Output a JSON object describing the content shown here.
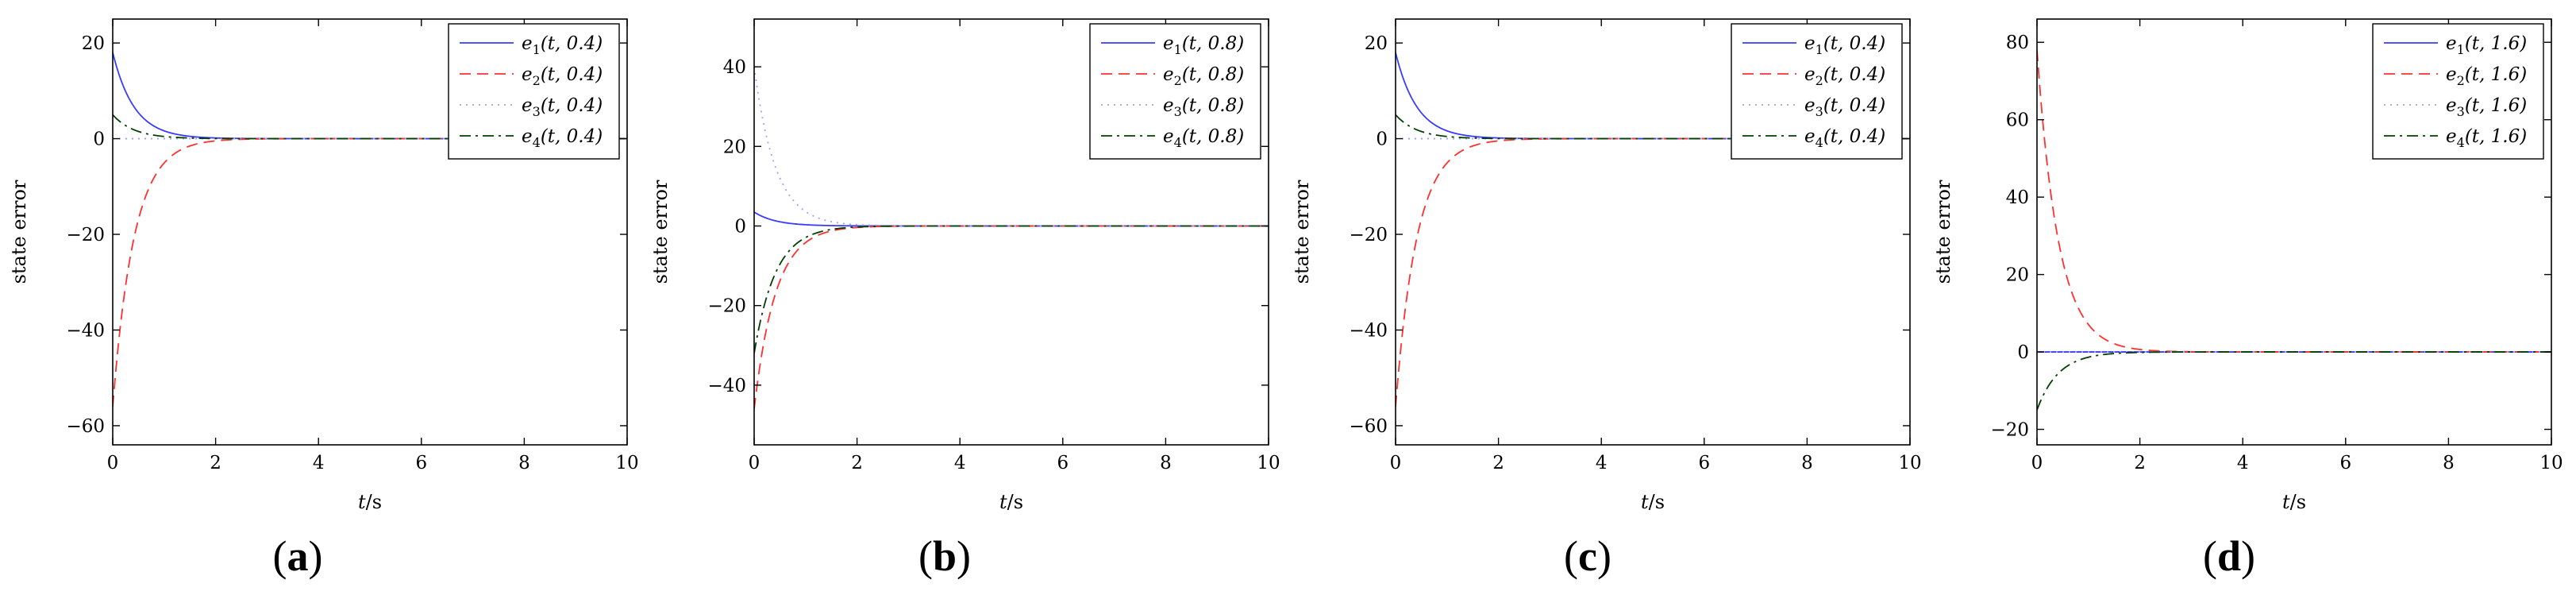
{
  "chart_data": [
    {
      "type": "line",
      "panel_label": "(a)",
      "xlabel": "t/s",
      "ylabel": "state error",
      "xlim": [
        0,
        10
      ],
      "ylim": [
        -64,
        25
      ],
      "xticks": [
        0,
        2,
        4,
        6,
        8,
        10
      ],
      "yticks": [
        -60,
        -40,
        -20,
        0,
        20
      ],
      "legend_position": "top-right",
      "series": [
        {
          "name": "e1(t, 0.4)",
          "legend_main": "e",
          "legend_sub": "1",
          "legend_args": "(t, 0.4)",
          "initial": 18,
          "rate": 2.4,
          "color": "#3b3bff",
          "style": "solid"
        },
        {
          "name": "e2(t, 0.4)",
          "legend_main": "e",
          "legend_sub": "2",
          "legend_args": "(t, 0.4)",
          "initial": -56,
          "rate": 2.4,
          "color": "#ff3030",
          "style": "dashed"
        },
        {
          "name": "e3(t, 0.4)",
          "legend_main": "e",
          "legend_sub": "3",
          "legend_args": "(t, 0.4)",
          "initial": 0,
          "rate": 2.4,
          "color": "#a0a0ff",
          "style": "dotted"
        },
        {
          "name": "e4(t, 0.4)",
          "legend_main": "e",
          "legend_sub": "4",
          "legend_args": "(t, 0.4)",
          "initial": 5,
          "rate": 2.4,
          "color": "#004000",
          "style": "dashdot"
        }
      ]
    },
    {
      "type": "line",
      "panel_label": "(b)",
      "xlabel": "t/s",
      "ylabel": "state error",
      "xlim": [
        0,
        10
      ],
      "ylim": [
        -55,
        52
      ],
      "xticks": [
        0,
        2,
        4,
        6,
        8,
        10
      ],
      "yticks": [
        -40,
        -20,
        0,
        20,
        40
      ],
      "legend_position": "top-right",
      "series": [
        {
          "name": "e1(t, 0.8)",
          "legend_main": "e",
          "legend_sub": "1",
          "legend_args": "(t, 0.8)",
          "initial": 3.5,
          "rate": 2.4,
          "color": "#3b3bff",
          "style": "solid"
        },
        {
          "name": "e2(t, 0.8)",
          "legend_main": "e",
          "legend_sub": "2",
          "legend_args": "(t, 0.8)",
          "initial": -46,
          "rate": 2.4,
          "color": "#ff3030",
          "style": "dashed"
        },
        {
          "name": "e3(t, 0.8)",
          "legend_main": "e",
          "legend_sub": "3",
          "legend_args": "(t, 0.8)",
          "initial": 40,
          "rate": 2.4,
          "color": "#a0a0ff",
          "style": "dotted"
        },
        {
          "name": "e4(t, 0.8)",
          "legend_main": "e",
          "legend_sub": "4",
          "legend_args": "(t, 0.8)",
          "initial": -32,
          "rate": 2.4,
          "color": "#004000",
          "style": "dashdot"
        }
      ]
    },
    {
      "type": "line",
      "panel_label": "(c)",
      "xlabel": "t/s",
      "ylabel": "state error",
      "xlim": [
        0,
        10
      ],
      "ylim": [
        -64,
        25
      ],
      "xticks": [
        0,
        2,
        4,
        6,
        8,
        10
      ],
      "yticks": [
        -60,
        -40,
        -20,
        0,
        20
      ],
      "legend_position": "top-right",
      "series": [
        {
          "name": "e1(t, 0.4)",
          "legend_main": "e",
          "legend_sub": "1",
          "legend_args": "(t, 0.4)",
          "initial": 18,
          "rate": 2.4,
          "color": "#3b3bff",
          "style": "solid"
        },
        {
          "name": "e2(t, 0.4)",
          "legend_main": "e",
          "legend_sub": "2",
          "legend_args": "(t, 0.4)",
          "initial": -56,
          "rate": 2.4,
          "color": "#ff3030",
          "style": "dashed"
        },
        {
          "name": "e3(t, 0.4)",
          "legend_main": "e",
          "legend_sub": "3",
          "legend_args": "(t, 0.4)",
          "initial": 0,
          "rate": 2.4,
          "color": "#a0a0ff",
          "style": "dotted"
        },
        {
          "name": "e4(t, 0.4)",
          "legend_main": "e",
          "legend_sub": "4",
          "legend_args": "(t, 0.4)",
          "initial": 5,
          "rate": 2.4,
          "color": "#004000",
          "style": "dashdot"
        }
      ]
    },
    {
      "type": "line",
      "panel_label": "(d)",
      "xlabel": "t/s",
      "ylabel": "state error",
      "xlim": [
        0,
        10
      ],
      "ylim": [
        -24,
        86
      ],
      "xticks": [
        0,
        2,
        4,
        6,
        8,
        10
      ],
      "yticks": [
        -20,
        0,
        20,
        40,
        60,
        80
      ],
      "legend_position": "top-right",
      "series": [
        {
          "name": "e1(t, 1.6)",
          "legend_main": "e",
          "legend_sub": "1",
          "legend_args": "(t, 1.6)",
          "initial": 0,
          "rate": 2.4,
          "color": "#3b3bff",
          "style": "solid"
        },
        {
          "name": "e2(t, 1.6)",
          "legend_main": "e",
          "legend_sub": "2",
          "legend_args": "(t, 1.6)",
          "initial": 78,
          "rate": 2.4,
          "color": "#ff3030",
          "style": "dashed"
        },
        {
          "name": "e3(t, 1.6)",
          "legend_main": "e",
          "legend_sub": "3",
          "legend_args": "(t, 1.6)",
          "initial": 0,
          "rate": 2.4,
          "color": "#a0a0ff",
          "style": "dotted"
        },
        {
          "name": "e4(t, 1.6)",
          "legend_main": "e",
          "legend_sub": "4",
          "legend_args": "(t, 1.6)",
          "initial": -15,
          "rate": 2.4,
          "color": "#004000",
          "style": "dashdot"
        }
      ]
    }
  ]
}
